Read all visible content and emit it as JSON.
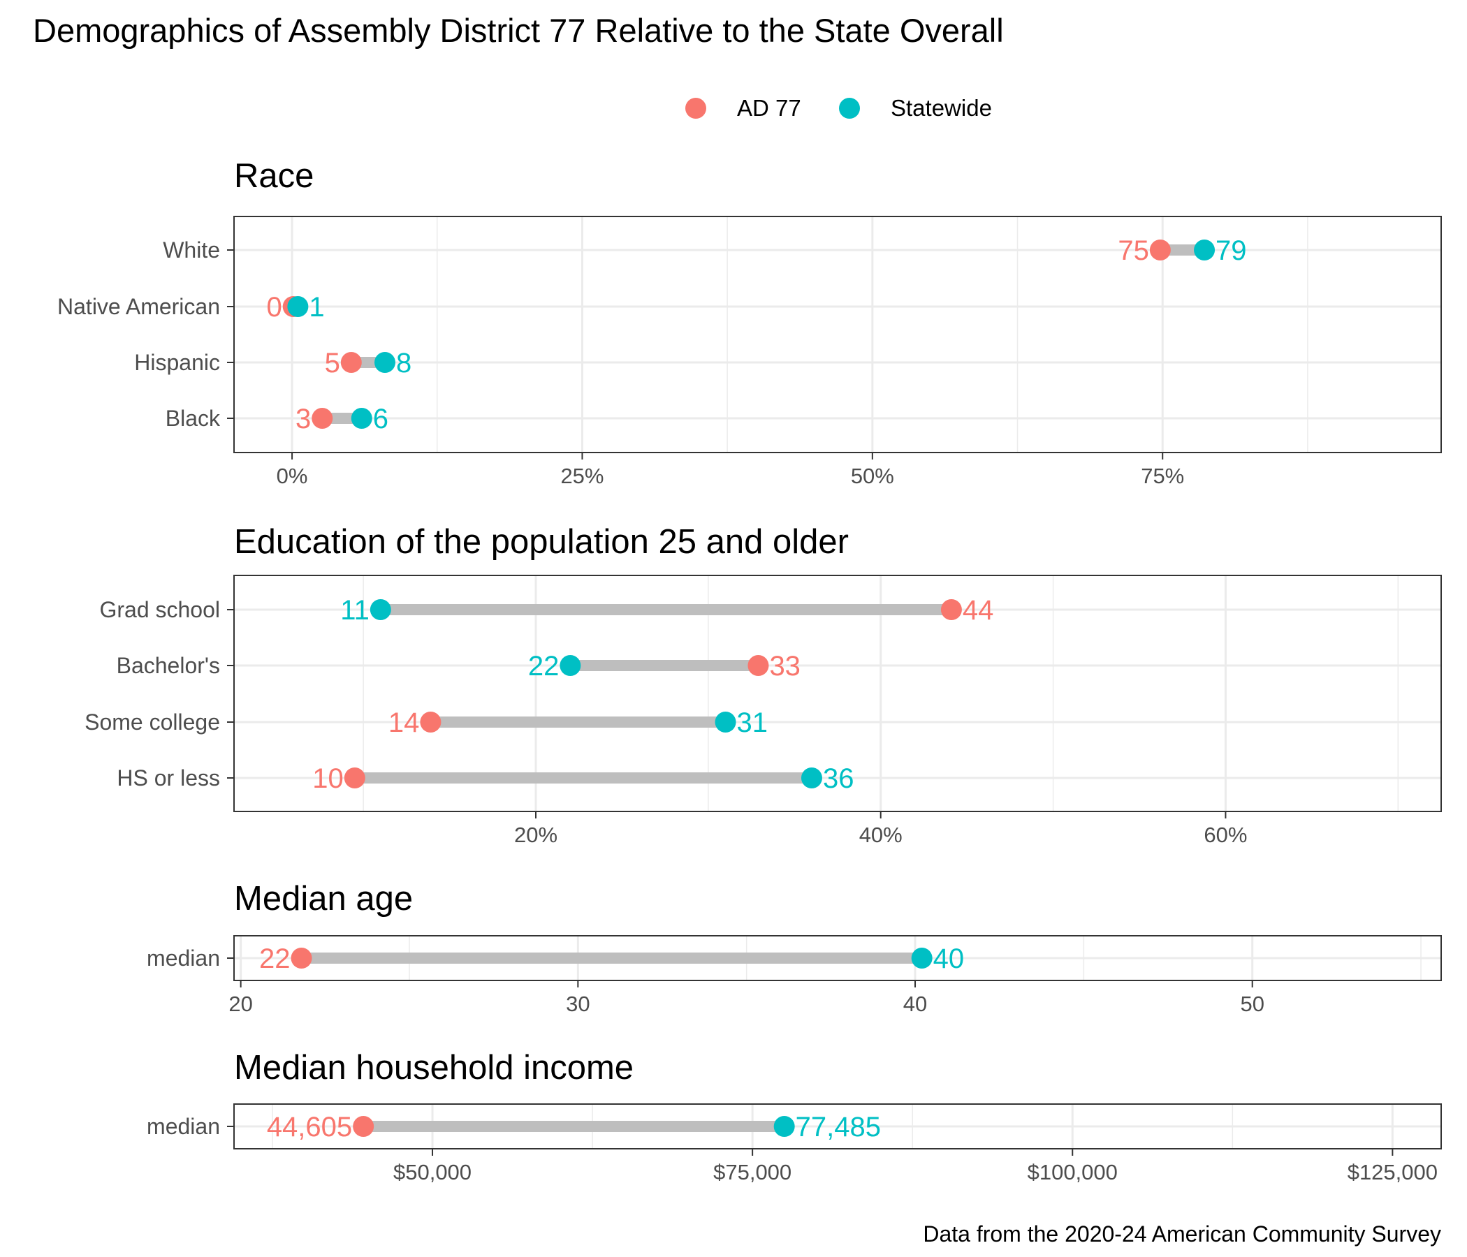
{
  "title": "Demographics of Assembly District 77 Relative to the State Overall",
  "caption": "Data from the 2020-24 American Community Survey",
  "colors": {
    "ad": "#F8766D",
    "state": "#00BFC4",
    "segment": "#BEBEBE",
    "grid": "#EBEBEB",
    "panel_border": "#333333"
  },
  "legend": {
    "position": "top",
    "items": [
      {
        "label": "AD 77",
        "color": "#F8766D"
      },
      {
        "label": "Statewide",
        "color": "#00BFC4"
      }
    ]
  },
  "chart_data": [
    {
      "type": "dumbbell",
      "title": "Race",
      "xlim": [
        -5,
        99
      ],
      "x_ticks": [
        {
          "value": 0,
          "label": "0%"
        },
        {
          "value": 25,
          "label": "25%"
        },
        {
          "value": 50,
          "label": "50%"
        },
        {
          "value": 75,
          "label": "75%"
        }
      ],
      "x_minor": [
        12.5,
        37.5,
        62.5,
        87.5
      ],
      "grid": true,
      "categories": [
        "White",
        "Native American",
        "Hispanic",
        "Black"
      ],
      "series": [
        {
          "name": "AD 77",
          "values": [
            74.8,
            0.1,
            5.1,
            2.6
          ],
          "labels": [
            "75",
            "0",
            "5",
            "3"
          ]
        },
        {
          "name": "Statewide",
          "values": [
            78.6,
            0.5,
            8.0,
            6.0
          ],
          "labels": [
            "79",
            "1",
            "8",
            "6"
          ]
        }
      ]
    },
    {
      "type": "dumbbell",
      "title": "Education of the population 25 and older",
      "xlim": [
        2.5,
        72.5
      ],
      "x_ticks": [
        {
          "value": 20,
          "label": "20%"
        },
        {
          "value": 40,
          "label": "40%"
        },
        {
          "value": 60,
          "label": "60%"
        }
      ],
      "x_minor": [
        10,
        30,
        50,
        70
      ],
      "grid": true,
      "categories": [
        "Grad school",
        "Bachelor's",
        "Some college",
        "HS or less"
      ],
      "series": [
        {
          "name": "AD 77",
          "values": [
            44.1,
            32.9,
            13.9,
            9.5
          ],
          "labels": [
            "44",
            "33",
            "14",
            "10"
          ]
        },
        {
          "name": "Statewide",
          "values": [
            11.0,
            22.0,
            31.0,
            36.0
          ],
          "labels": [
            "11",
            "22",
            "31",
            "36"
          ]
        }
      ]
    },
    {
      "type": "dumbbell",
      "title": "Median age",
      "xlim": [
        19.8,
        55.6
      ],
      "x_ticks": [
        {
          "value": 20,
          "label": "20"
        },
        {
          "value": 30,
          "label": "30"
        },
        {
          "value": 40,
          "label": "40"
        },
        {
          "value": 50,
          "label": "50"
        }
      ],
      "x_minor": [
        25,
        35,
        45,
        55
      ],
      "grid": true,
      "categories": [
        "median"
      ],
      "series": [
        {
          "name": "AD 77",
          "values": [
            21.8
          ],
          "labels": [
            "22"
          ]
        },
        {
          "name": "Statewide",
          "values": [
            40.2
          ],
          "labels": [
            "40"
          ]
        }
      ]
    },
    {
      "type": "dumbbell",
      "title": "Median household income",
      "xlim": [
        34500,
        128800
      ],
      "x_ticks": [
        {
          "value": 50000,
          "label": "$50,000"
        },
        {
          "value": 75000,
          "label": "$75,000"
        },
        {
          "value": 100000,
          "label": "$100,000"
        },
        {
          "value": 125000,
          "label": "$125,000"
        }
      ],
      "x_minor": [
        37500,
        62500,
        87500,
        112500
      ],
      "grid": true,
      "categories": [
        "median"
      ],
      "series": [
        {
          "name": "AD 77",
          "values": [
            44605
          ],
          "labels": [
            "44,605"
          ]
        },
        {
          "name": "Statewide",
          "values": [
            77485
          ],
          "labels": [
            "77,485"
          ]
        }
      ]
    }
  ]
}
